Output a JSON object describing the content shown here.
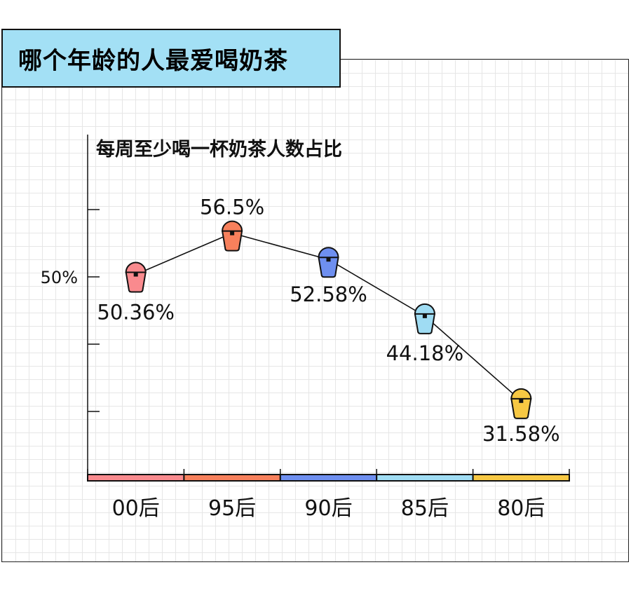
{
  "header": {
    "title": "哪个年龄的人最爱喝奶茶"
  },
  "chart_data": {
    "type": "line",
    "title": "每周至少喝一杯奶茶人数占比",
    "categories": [
      "00后",
      "95后",
      "90后",
      "85后",
      "80后"
    ],
    "values": [
      50.36,
      56.5,
      52.58,
      44.18,
      31.58
    ],
    "value_labels": [
      "50.36%",
      "56.5%",
      "52.58%",
      "44.18%",
      "31.58%"
    ],
    "colors": [
      "#f98a8e",
      "#f7805c",
      "#6e8ff0",
      "#9fdcf3",
      "#f7c843"
    ],
    "y_tick_label": "50%",
    "y_tick_value": 50,
    "grid": true,
    "legend": "none",
    "xlabel": "",
    "ylabel": ""
  }
}
